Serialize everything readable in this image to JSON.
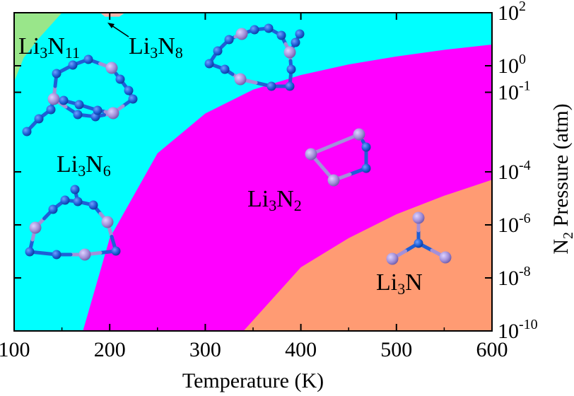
{
  "chart_data": {
    "type": "area",
    "title": "",
    "xlabel": "Temperature (K)",
    "ylabel_parts": {
      "main": "N",
      "sub": "2",
      "rest": " Pressure (atm)"
    },
    "xlim": [
      100,
      600
    ],
    "x_ticks": [
      "100",
      "200",
      "300",
      "400",
      "500",
      "600"
    ],
    "y_log_exponent_range": [
      -10,
      2
    ],
    "y_ticks": [
      {
        "exp": 2,
        "base": "10",
        "sup": "2"
      },
      {
        "exp": 0,
        "base": "10",
        "sup": "0"
      },
      {
        "exp": -1,
        "base": "10",
        "sup": "-1"
      },
      {
        "exp": -4,
        "base": "10",
        "sup": "-4"
      },
      {
        "exp": -6,
        "base": "10",
        "sup": "-6"
      },
      {
        "exp": -8,
        "base": "10",
        "sup": "-8"
      },
      {
        "exp": -10,
        "base": "10",
        "sup": "-10"
      }
    ],
    "regions": [
      {
        "name": "Li3N11",
        "parts": [
          "Li",
          "3",
          "N",
          "11"
        ],
        "color": "#99e68a"
      },
      {
        "name": "Li3N8",
        "parts": [
          "Li",
          "3",
          "N",
          "8"
        ],
        "color": "#f7b3aa"
      },
      {
        "name": "Li3N6",
        "parts": [
          "Li",
          "3",
          "N",
          "6"
        ],
        "color": "#00ffff"
      },
      {
        "name": "Li3N2",
        "parts": [
          "Li",
          "3",
          "N",
          "2"
        ],
        "color": "#ff00ff"
      },
      {
        "name": "Li3N",
        "parts": [
          "Li",
          "3",
          "N",
          ""
        ],
        "color": "#ff9b73"
      }
    ],
    "boundaries": {
      "Li3N6_Li3N2": [
        [
          172,
          -10
        ],
        [
          200,
          -6.5
        ],
        [
          250,
          -3.3
        ],
        [
          300,
          -1.8
        ],
        [
          350,
          -0.9
        ],
        [
          400,
          -0.35
        ],
        [
          450,
          0.05
        ],
        [
          500,
          0.35
        ],
        [
          550,
          0.6
        ],
        [
          600,
          0.8
        ]
      ],
      "Li3N2_Li3N": [
        [
          340,
          -10
        ],
        [
          400,
          -7.6
        ],
        [
          450,
          -6.5
        ],
        [
          500,
          -5.6
        ],
        [
          550,
          -4.9
        ],
        [
          600,
          -4.3
        ]
      ],
      "Li3N11_Li3N6": [
        [
          100,
          -0.6
        ],
        [
          110,
          0.3
        ],
        [
          125,
          1.0
        ],
        [
          140,
          1.6
        ],
        [
          150,
          2
        ]
      ],
      "Li3N8_top": [
        [
          190,
          2
        ],
        [
          195,
          1.85
        ],
        [
          210,
          1.85
        ],
        [
          216,
          2
        ]
      ]
    },
    "axis_color": "#000000",
    "atom_colors": {
      "Li": "#a390d9",
      "N": "#1f5fd6"
    }
  }
}
